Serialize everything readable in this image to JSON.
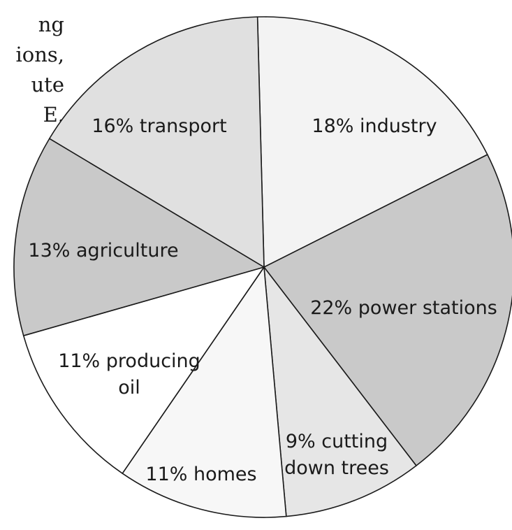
{
  "intro_text_fragments": [
    "ng",
    "ions,",
    "ute",
    "E."
  ],
  "chart_data": {
    "type": "pie",
    "title": "",
    "slices": [
      {
        "label_lines": [
          "18% industry"
        ],
        "value": 18,
        "color": "#f3f3f3"
      },
      {
        "label_lines": [
          "22% power stations"
        ],
        "value": 22,
        "color": "#c9c9c9"
      },
      {
        "label_lines": [
          "9% cutting",
          "down trees"
        ],
        "value": 9,
        "color": "#e6e6e6"
      },
      {
        "label_lines": [
          "11% homes"
        ],
        "value": 11,
        "color": "#f7f7f7"
      },
      {
        "label_lines": [
          "11% producing",
          "oil"
        ],
        "value": 11,
        "color": "#ffffff"
      },
      {
        "label_lines": [
          "13% agriculture"
        ],
        "value": 13,
        "color": "#c9c9c9"
      },
      {
        "label_lines": [
          "16% transport"
        ],
        "value": 16,
        "color": "#e0e0e0"
      }
    ]
  }
}
